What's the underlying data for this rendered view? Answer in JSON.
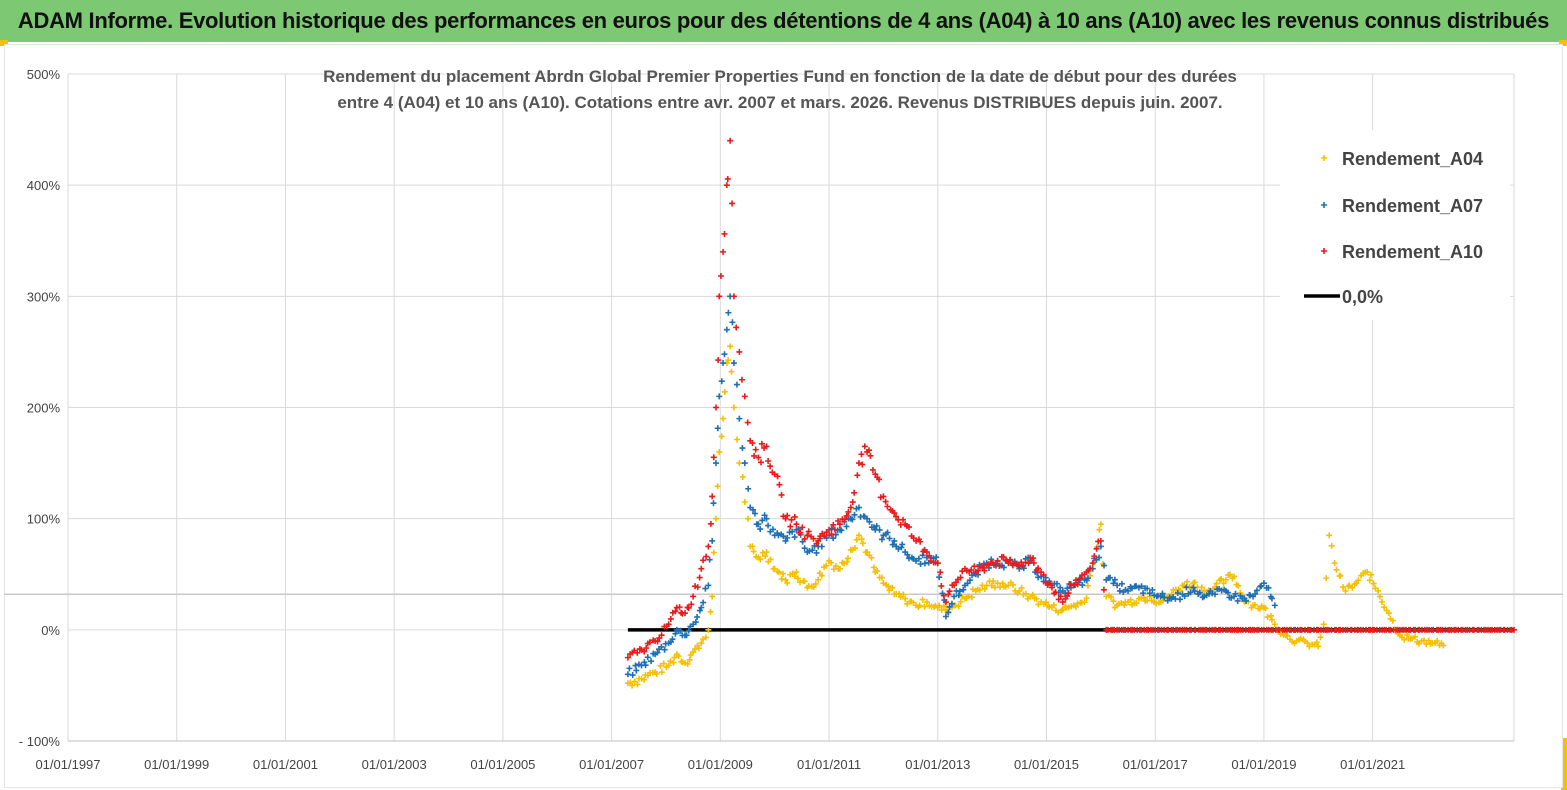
{
  "banner": {
    "title": "ADAM Informe. Evolution historique des performances en euros pour des détentions de 4 ans (A04) à 10 ans (A10) avec les revenus connus distribués"
  },
  "colors": {
    "banner": "#7dc872",
    "A04": "#f5c000",
    "A07": "#1f6fb5",
    "A10": "#e81c1c",
    "zero": "#000000"
  },
  "chart_data": {
    "type": "scatter",
    "title": "Rendement du placement Abrdn Global Premier Properties Fund en fonction de la date de début pour des durées",
    "subtitle": "entre 4 (A04) et 10 ans (A10). Cotations entre avr. 2007 et mars. 2026. Revenus DISTRIBUES depuis juin. 2007.",
    "xlabel": "",
    "ylabel": "",
    "x_range": [
      "1997-01-01",
      "2023-09-01"
    ],
    "ylim": [
      -100,
      500
    ],
    "y_ticks": [
      -100,
      0,
      100,
      200,
      300,
      400,
      500
    ],
    "y_tick_labels": [
      "- 100%",
      "0%",
      "100%",
      "200%",
      "300%",
      "400%",
      "500%"
    ],
    "x_tick_labels": [
      "01/01/1997",
      "01/01/1999",
      "01/01/2001",
      "01/01/2003",
      "01/01/2005",
      "01/01/2007",
      "01/01/2009",
      "01/01/2011",
      "01/01/2013",
      "01/01/2015",
      "01/01/2017",
      "01/01/2019",
      "01/01/2021"
    ],
    "x_tick_years": [
      1997,
      1999,
      2001,
      2003,
      2005,
      2007,
      2009,
      2011,
      2013,
      2015,
      2017,
      2019,
      2021
    ],
    "grid": true,
    "legend": "right",
    "series": [
      {
        "name": "Rendement_A04",
        "marker": "+",
        "points": [
          [
            2007.3,
            -48
          ],
          [
            2007.55,
            -44
          ],
          [
            2007.8,
            -38
          ],
          [
            2008.05,
            -32
          ],
          [
            2008.2,
            -22
          ],
          [
            2008.35,
            -30
          ],
          [
            2008.5,
            -20
          ],
          [
            2008.65,
            -12
          ],
          [
            2008.78,
            0
          ],
          [
            2008.85,
            30
          ],
          [
            2008.92,
            100
          ],
          [
            2008.98,
            160
          ],
          [
            2009.05,
            190
          ],
          [
            2009.12,
            240
          ],
          [
            2009.18,
            255
          ],
          [
            2009.25,
            200
          ],
          [
            2009.35,
            150
          ],
          [
            2009.45,
            115
          ],
          [
            2009.55,
            75
          ],
          [
            2009.7,
            65
          ],
          [
            2009.85,
            70
          ],
          [
            2010.0,
            55
          ],
          [
            2010.2,
            45
          ],
          [
            2010.4,
            52
          ],
          [
            2010.6,
            38
          ],
          [
            2010.8,
            45
          ],
          [
            2011.0,
            62
          ],
          [
            2011.2,
            55
          ],
          [
            2011.4,
            72
          ],
          [
            2011.55,
            85
          ],
          [
            2011.7,
            70
          ],
          [
            2011.85,
            52
          ],
          [
            2012.0,
            42
          ],
          [
            2012.2,
            32
          ],
          [
            2012.4,
            28
          ],
          [
            2012.6,
            22
          ],
          [
            2012.8,
            25
          ],
          [
            2013.0,
            20
          ],
          [
            2013.15,
            18
          ],
          [
            2013.3,
            22
          ],
          [
            2013.5,
            28
          ],
          [
            2013.7,
            35
          ],
          [
            2013.9,
            40
          ],
          [
            2014.1,
            42
          ],
          [
            2014.3,
            40
          ],
          [
            2014.5,
            35
          ],
          [
            2014.7,
            30
          ],
          [
            2014.9,
            25
          ],
          [
            2015.1,
            20
          ],
          [
            2015.3,
            18
          ],
          [
            2015.5,
            22
          ],
          [
            2015.7,
            25
          ],
          [
            2015.85,
            55
          ],
          [
            2016.0,
            95
          ],
          [
            2016.1,
            30
          ],
          [
            2016.3,
            22
          ],
          [
            2016.5,
            25
          ],
          [
            2016.7,
            28
          ],
          [
            2016.9,
            30
          ],
          [
            2017.1,
            25
          ],
          [
            2017.3,
            32
          ],
          [
            2017.5,
            40
          ],
          [
            2017.7,
            42
          ],
          [
            2017.9,
            35
          ],
          [
            2018.1,
            38
          ],
          [
            2018.3,
            45
          ],
          [
            2018.45,
            48
          ],
          [
            2018.6,
            30
          ],
          [
            2018.8,
            22
          ],
          [
            2019.0,
            20
          ],
          [
            2019.2,
            5
          ],
          [
            2019.4,
            -5
          ],
          [
            2019.6,
            -10
          ],
          [
            2019.8,
            -12
          ],
          [
            2020.0,
            -15
          ],
          [
            2020.1,
            5
          ],
          [
            2020.2,
            85
          ],
          [
            2020.3,
            60
          ],
          [
            2020.5,
            35
          ],
          [
            2020.7,
            42
          ],
          [
            2020.9,
            52
          ],
          [
            2021.1,
            35
          ],
          [
            2021.3,
            15
          ],
          [
            2021.5,
            -5
          ],
          [
            2021.7,
            -8
          ],
          [
            2021.9,
            -10
          ],
          [
            2022.1,
            -12
          ],
          [
            2022.3,
            -14
          ]
        ]
      },
      {
        "name": "Rendement_A07",
        "marker": "+",
        "points": [
          [
            2007.3,
            -40
          ],
          [
            2007.55,
            -32
          ],
          [
            2007.8,
            -22
          ],
          [
            2008.05,
            -12
          ],
          [
            2008.2,
            0
          ],
          [
            2008.35,
            -5
          ],
          [
            2008.5,
            5
          ],
          [
            2008.65,
            20
          ],
          [
            2008.78,
            40
          ],
          [
            2008.85,
            80
          ],
          [
            2008.92,
            150
          ],
          [
            2008.98,
            210
          ],
          [
            2009.05,
            240
          ],
          [
            2009.12,
            270
          ],
          [
            2009.18,
            300
          ],
          [
            2009.25,
            240
          ],
          [
            2009.35,
            190
          ],
          [
            2009.45,
            150
          ],
          [
            2009.55,
            110
          ],
          [
            2009.7,
            95
          ],
          [
            2009.85,
            100
          ],
          [
            2010.0,
            85
          ],
          [
            2010.2,
            80
          ],
          [
            2010.4,
            90
          ],
          [
            2010.6,
            70
          ],
          [
            2010.8,
            75
          ],
          [
            2011.0,
            85
          ],
          [
            2011.2,
            90
          ],
          [
            2011.4,
            100
          ],
          [
            2011.55,
            110
          ],
          [
            2011.7,
            100
          ],
          [
            2011.85,
            90
          ],
          [
            2012.0,
            85
          ],
          [
            2012.2,
            80
          ],
          [
            2012.4,
            70
          ],
          [
            2012.6,
            62
          ],
          [
            2012.8,
            65
          ],
          [
            2013.0,
            60
          ],
          [
            2013.15,
            12
          ],
          [
            2013.3,
            30
          ],
          [
            2013.5,
            40
          ],
          [
            2013.7,
            50
          ],
          [
            2013.9,
            60
          ],
          [
            2014.1,
            62
          ],
          [
            2014.3,
            60
          ],
          [
            2014.5,
            55
          ],
          [
            2014.7,
            62
          ],
          [
            2014.9,
            48
          ],
          [
            2015.1,
            40
          ],
          [
            2015.3,
            35
          ],
          [
            2015.5,
            40
          ],
          [
            2015.7,
            45
          ],
          [
            2015.85,
            55
          ],
          [
            2016.0,
            75
          ],
          [
            2016.1,
            45
          ],
          [
            2016.3,
            40
          ],
          [
            2016.5,
            35
          ],
          [
            2016.7,
            38
          ],
          [
            2016.9,
            33
          ],
          [
            2017.1,
            30
          ],
          [
            2017.3,
            28
          ],
          [
            2017.5,
            32
          ],
          [
            2017.7,
            38
          ],
          [
            2017.9,
            30
          ],
          [
            2018.1,
            32
          ],
          [
            2018.3,
            35
          ],
          [
            2018.45,
            30
          ],
          [
            2018.6,
            28
          ],
          [
            2018.8,
            30
          ],
          [
            2019.0,
            42
          ],
          [
            2019.2,
            22
          ]
        ]
      },
      {
        "name": "Rendement_A10",
        "marker": "+",
        "points": [
          [
            2007.3,
            -25
          ],
          [
            2007.55,
            -18
          ],
          [
            2007.8,
            -10
          ],
          [
            2008.05,
            5
          ],
          [
            2008.2,
            20
          ],
          [
            2008.35,
            15
          ],
          [
            2008.5,
            30
          ],
          [
            2008.65,
            55
          ],
          [
            2008.78,
            75
          ],
          [
            2008.85,
            120
          ],
          [
            2008.92,
            200
          ],
          [
            2008.98,
            300
          ],
          [
            2009.05,
            340
          ],
          [
            2009.12,
            400
          ],
          [
            2009.18,
            440
          ],
          [
            2009.25,
            300
          ],
          [
            2009.35,
            250
          ],
          [
            2009.45,
            210
          ],
          [
            2009.55,
            170
          ],
          [
            2009.7,
            155
          ],
          [
            2009.85,
            165
          ],
          [
            2010.0,
            140
          ],
          [
            2010.2,
            100
          ],
          [
            2010.4,
            95
          ],
          [
            2010.6,
            85
          ],
          [
            2010.8,
            80
          ],
          [
            2011.0,
            90
          ],
          [
            2011.2,
            95
          ],
          [
            2011.4,
            110
          ],
          [
            2011.55,
            150
          ],
          [
            2011.7,
            160
          ],
          [
            2011.85,
            140
          ],
          [
            2012.0,
            120
          ],
          [
            2012.2,
            105
          ],
          [
            2012.4,
            95
          ],
          [
            2012.6,
            80
          ],
          [
            2012.8,
            70
          ],
          [
            2013.0,
            60
          ],
          [
            2013.15,
            25
          ],
          [
            2013.3,
            40
          ],
          [
            2013.5,
            55
          ],
          [
            2013.7,
            52
          ],
          [
            2013.9,
            58
          ],
          [
            2014.1,
            62
          ],
          [
            2014.3,
            60
          ],
          [
            2014.5,
            58
          ],
          [
            2014.7,
            65
          ],
          [
            2014.9,
            52
          ],
          [
            2015.1,
            38
          ],
          [
            2015.3,
            25
          ],
          [
            2015.5,
            40
          ],
          [
            2015.7,
            50
          ],
          [
            2015.85,
            60
          ],
          [
            2016.0,
            80
          ],
          [
            2016.1,
            0
          ],
          [
            2016.5,
            0
          ],
          [
            2017.0,
            0
          ],
          [
            2017.5,
            0
          ],
          [
            2018.0,
            0
          ],
          [
            2018.5,
            0
          ],
          [
            2019.0,
            0
          ],
          [
            2019.5,
            0
          ],
          [
            2020.0,
            0
          ],
          [
            2020.5,
            0
          ],
          [
            2021.0,
            0
          ],
          [
            2021.5,
            0
          ],
          [
            2022.0,
            0
          ],
          [
            2022.5,
            0
          ],
          [
            2023.0,
            0
          ],
          [
            2023.6,
            0
          ]
        ]
      },
      {
        "name": "0,0%",
        "line": true,
        "x": [
          2007.3,
          2023.6
        ],
        "y": [
          0,
          0
        ]
      }
    ],
    "reference_lines": [
      {
        "y": 32
      }
    ]
  }
}
